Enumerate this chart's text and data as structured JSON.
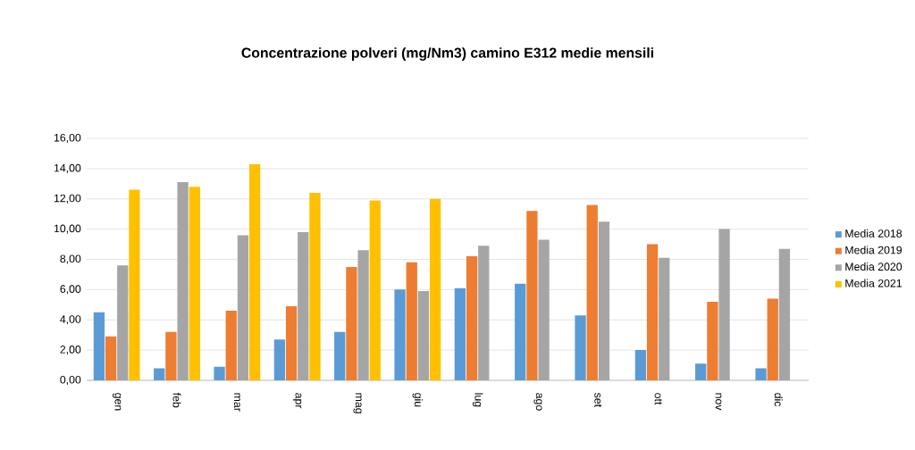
{
  "chart_data": {
    "type": "bar",
    "title": "Concentrazione polveri (mg/Nm3) camino E312 medie mensili",
    "categories": [
      "gen",
      "feb",
      "mar",
      "apr",
      "mag",
      "giu",
      "lug",
      "ago",
      "set",
      "ott",
      "nov",
      "dic"
    ],
    "series": [
      {
        "name": "Media 2018",
        "color": "#5b9bd5",
        "values": [
          4.5,
          0.8,
          0.9,
          2.7,
          3.2,
          6.0,
          6.1,
          6.4,
          4.3,
          2.0,
          1.1,
          0.8
        ]
      },
      {
        "name": "Media 2019",
        "color": "#ed7d31",
        "values": [
          2.9,
          3.2,
          4.6,
          4.9,
          7.5,
          7.8,
          8.2,
          11.2,
          11.6,
          9.0,
          5.2,
          5.4
        ]
      },
      {
        "name": "Media 2020",
        "color": "#a5a5a5",
        "values": [
          7.6,
          13.1,
          9.6,
          9.8,
          8.6,
          5.9,
          8.9,
          9.3,
          10.5,
          8.1,
          10.0,
          8.7
        ]
      },
      {
        "name": "Media 2021",
        "color": "#ffc000",
        "values": [
          12.6,
          12.8,
          14.3,
          12.4,
          11.9,
          12.0,
          null,
          null,
          null,
          null,
          null,
          null
        ]
      }
    ],
    "ylim": [
      0,
      16
    ],
    "yticks": [
      {
        "value": 0,
        "label": "0,00"
      },
      {
        "value": 2,
        "label": "2,00"
      },
      {
        "value": 4,
        "label": "4,00"
      },
      {
        "value": 6,
        "label": "6,00"
      },
      {
        "value": 8,
        "label": "8,00"
      },
      {
        "value": 10,
        "label": "10,00"
      },
      {
        "value": 12,
        "label": "12,00"
      },
      {
        "value": 14,
        "label": "14,00"
      },
      {
        "value": 16,
        "label": "16,00"
      }
    ],
    "grid": "y",
    "legend": "right"
  }
}
